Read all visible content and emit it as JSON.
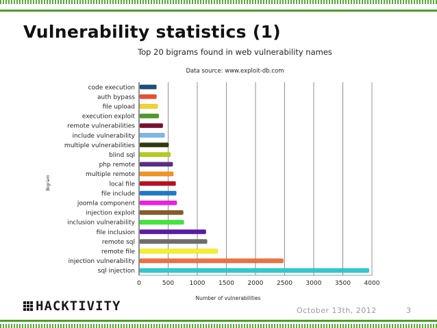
{
  "slide": {
    "title": "Vulnerability statistics (1)",
    "logo_text": "HACKTIVITY",
    "date": "October 13th, 2012",
    "page_number": "3"
  },
  "chart_data": {
    "type": "bar",
    "orientation": "horizontal",
    "title": "Top 20 bigrams found in web vulnerability names",
    "subtitle": "Data source: www.exploit-db.com",
    "xlabel": "Number of vulnerabilities",
    "ylabel": "Bigram",
    "xlim": [
      0,
      4000
    ],
    "xticks": [
      0,
      500,
      1000,
      1500,
      2000,
      2500,
      3000,
      3500,
      4000
    ],
    "grid": "vertical",
    "categories": [
      "code execution",
      "auth bypass",
      "file upload",
      "execution exploit",
      "remote vulnerabilities",
      "include vulnerability",
      "multiple vulnerabilities",
      "blind sql",
      "php remote",
      "multiple remote",
      "local file",
      "file include",
      "joomla component",
      "injection exploit",
      "inclusion vulnerability",
      "file inclusion",
      "remote sql",
      "remote file",
      "injection vulnerability",
      "sql injection"
    ],
    "values": [
      300,
      300,
      320,
      340,
      410,
      440,
      510,
      540,
      580,
      590,
      630,
      640,
      650,
      760,
      770,
      1150,
      1170,
      1350,
      2480,
      3950
    ],
    "colors": [
      "#1f4e79",
      "#e8502e",
      "#f5d327",
      "#4f9a2a",
      "#7a1030",
      "#7ab8e6",
      "#2e3b0d",
      "#b5cc1a",
      "#5a2d82",
      "#f3921f",
      "#b8101d",
      "#1c79c8",
      "#f01ee0",
      "#8a5a2b",
      "#42e63a",
      "#5b1aa8",
      "#6e6e6e",
      "#f6f21e",
      "#f07040",
      "#2ec8d0"
    ]
  }
}
